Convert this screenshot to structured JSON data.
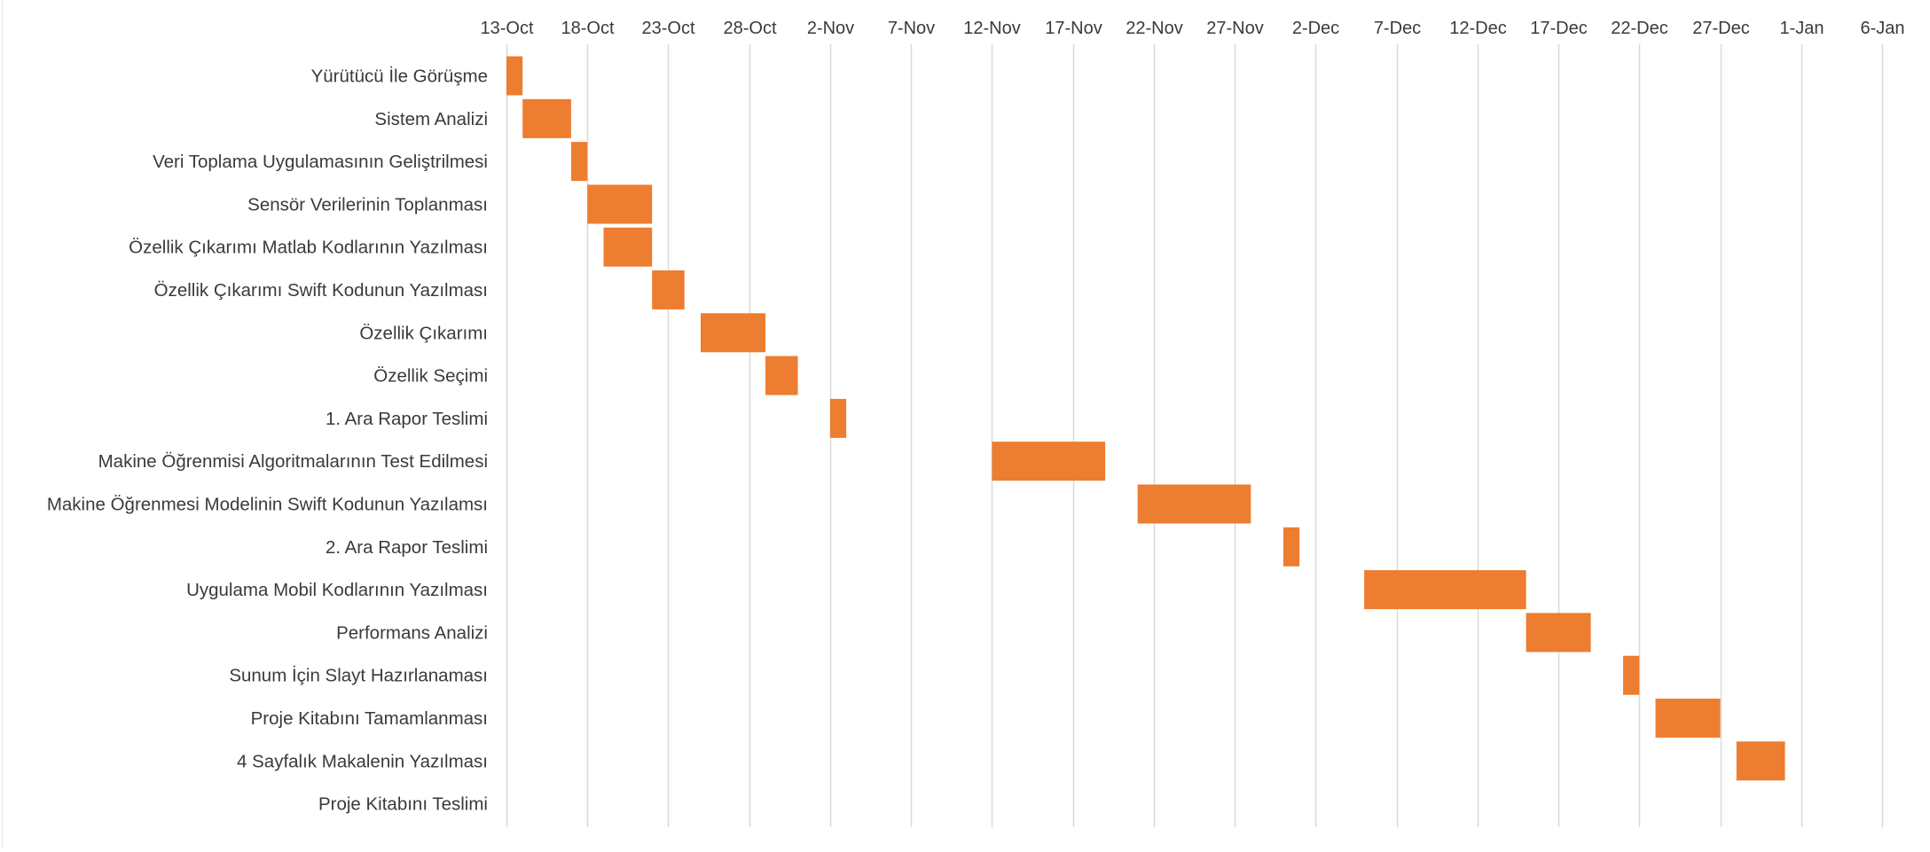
{
  "colors": {
    "bar": "#ED7D31",
    "grid": "#D9D9D9",
    "text": "#3A3A3A",
    "background": "#FFFFFF"
  },
  "chart_data": {
    "type": "gantt",
    "title": "",
    "xlabel": "",
    "ylabel": "",
    "x_axis": {
      "position": "top",
      "scale": "date",
      "min": "2019-10-13",
      "max": "2020-01-06",
      "tick_interval_days": 5,
      "ticks": [
        {
          "date": "2019-10-13",
          "label": "13-Oct"
        },
        {
          "date": "2019-10-18",
          "label": "18-Oct"
        },
        {
          "date": "2019-10-23",
          "label": "23-Oct"
        },
        {
          "date": "2019-10-28",
          "label": "28-Oct"
        },
        {
          "date": "2019-11-02",
          "label": "2-Nov"
        },
        {
          "date": "2019-11-07",
          "label": "7-Nov"
        },
        {
          "date": "2019-11-12",
          "label": "12-Nov"
        },
        {
          "date": "2019-11-17",
          "label": "17-Nov"
        },
        {
          "date": "2019-11-22",
          "label": "22-Nov"
        },
        {
          "date": "2019-11-27",
          "label": "27-Nov"
        },
        {
          "date": "2019-12-02",
          "label": "2-Dec"
        },
        {
          "date": "2019-12-07",
          "label": "7-Dec"
        },
        {
          "date": "2019-12-12",
          "label": "12-Dec"
        },
        {
          "date": "2019-12-17",
          "label": "17-Dec"
        },
        {
          "date": "2019-12-22",
          "label": "22-Dec"
        },
        {
          "date": "2019-12-27",
          "label": "27-Dec"
        },
        {
          "date": "2020-01-01",
          "label": "1-Jan"
        },
        {
          "date": "2020-01-06",
          "label": "6-Jan"
        }
      ]
    },
    "grid": true,
    "legend": "none",
    "tasks": [
      {
        "name": "Yürütücü İle Görüşme",
        "start": "2019-10-13",
        "end": "2019-10-14"
      },
      {
        "name": "Sistem Analizi",
        "start": "2019-10-14",
        "end": "2019-10-17"
      },
      {
        "name": "Veri Toplama Uygulamasının Geliştrilmesi",
        "start": "2019-10-17",
        "end": "2019-10-18"
      },
      {
        "name": "Sensör Verilerinin Toplanması",
        "start": "2019-10-18",
        "end": "2019-10-22"
      },
      {
        "name": "Özellik Çıkarımı Matlab Kodlarının Yazılması",
        "start": "2019-10-19",
        "end": "2019-10-22"
      },
      {
        "name": "Özellik Çıkarımı Swift Kodunun Yazılması",
        "start": "2019-10-22",
        "end": "2019-10-24"
      },
      {
        "name": "Özellik Çıkarımı",
        "start": "2019-10-25",
        "end": "2019-10-29"
      },
      {
        "name": "Özellik Seçimi",
        "start": "2019-10-29",
        "end": "2019-10-31"
      },
      {
        "name": "1. Ara Rapor Teslimi",
        "start": "2019-11-02",
        "end": "2019-11-03"
      },
      {
        "name": "Makine Öğrenmisi Algoritmalarının Test Edilmesi",
        "start": "2019-11-12",
        "end": "2019-11-19"
      },
      {
        "name": "Makine Öğrenmesi Modelinin Swift Kodunun Yazılamsı",
        "start": "2019-11-21",
        "end": "2019-11-28"
      },
      {
        "name": "2. Ara Rapor Teslimi",
        "start": "2019-11-30",
        "end": "2019-12-01"
      },
      {
        "name": "Uygulama Mobil Kodlarının Yazılması",
        "start": "2019-12-05",
        "end": "2019-12-15"
      },
      {
        "name": "Performans Analizi",
        "start": "2019-12-15",
        "end": "2019-12-19"
      },
      {
        "name": "Sunum İçin Slayt Hazırlanaması",
        "start": "2019-12-21",
        "end": "2019-12-22"
      },
      {
        "name": "Proje Kitabını Tamamlanması",
        "start": "2019-12-23",
        "end": "2019-12-27"
      },
      {
        "name": "4 Sayfalık Makalenin Yazılması",
        "start": "2019-12-28",
        "end": "2019-12-31"
      },
      {
        "name": "Proje Kitabını Teslimi",
        "start": "2020-01-06",
        "end": "2020-01-06"
      }
    ]
  }
}
